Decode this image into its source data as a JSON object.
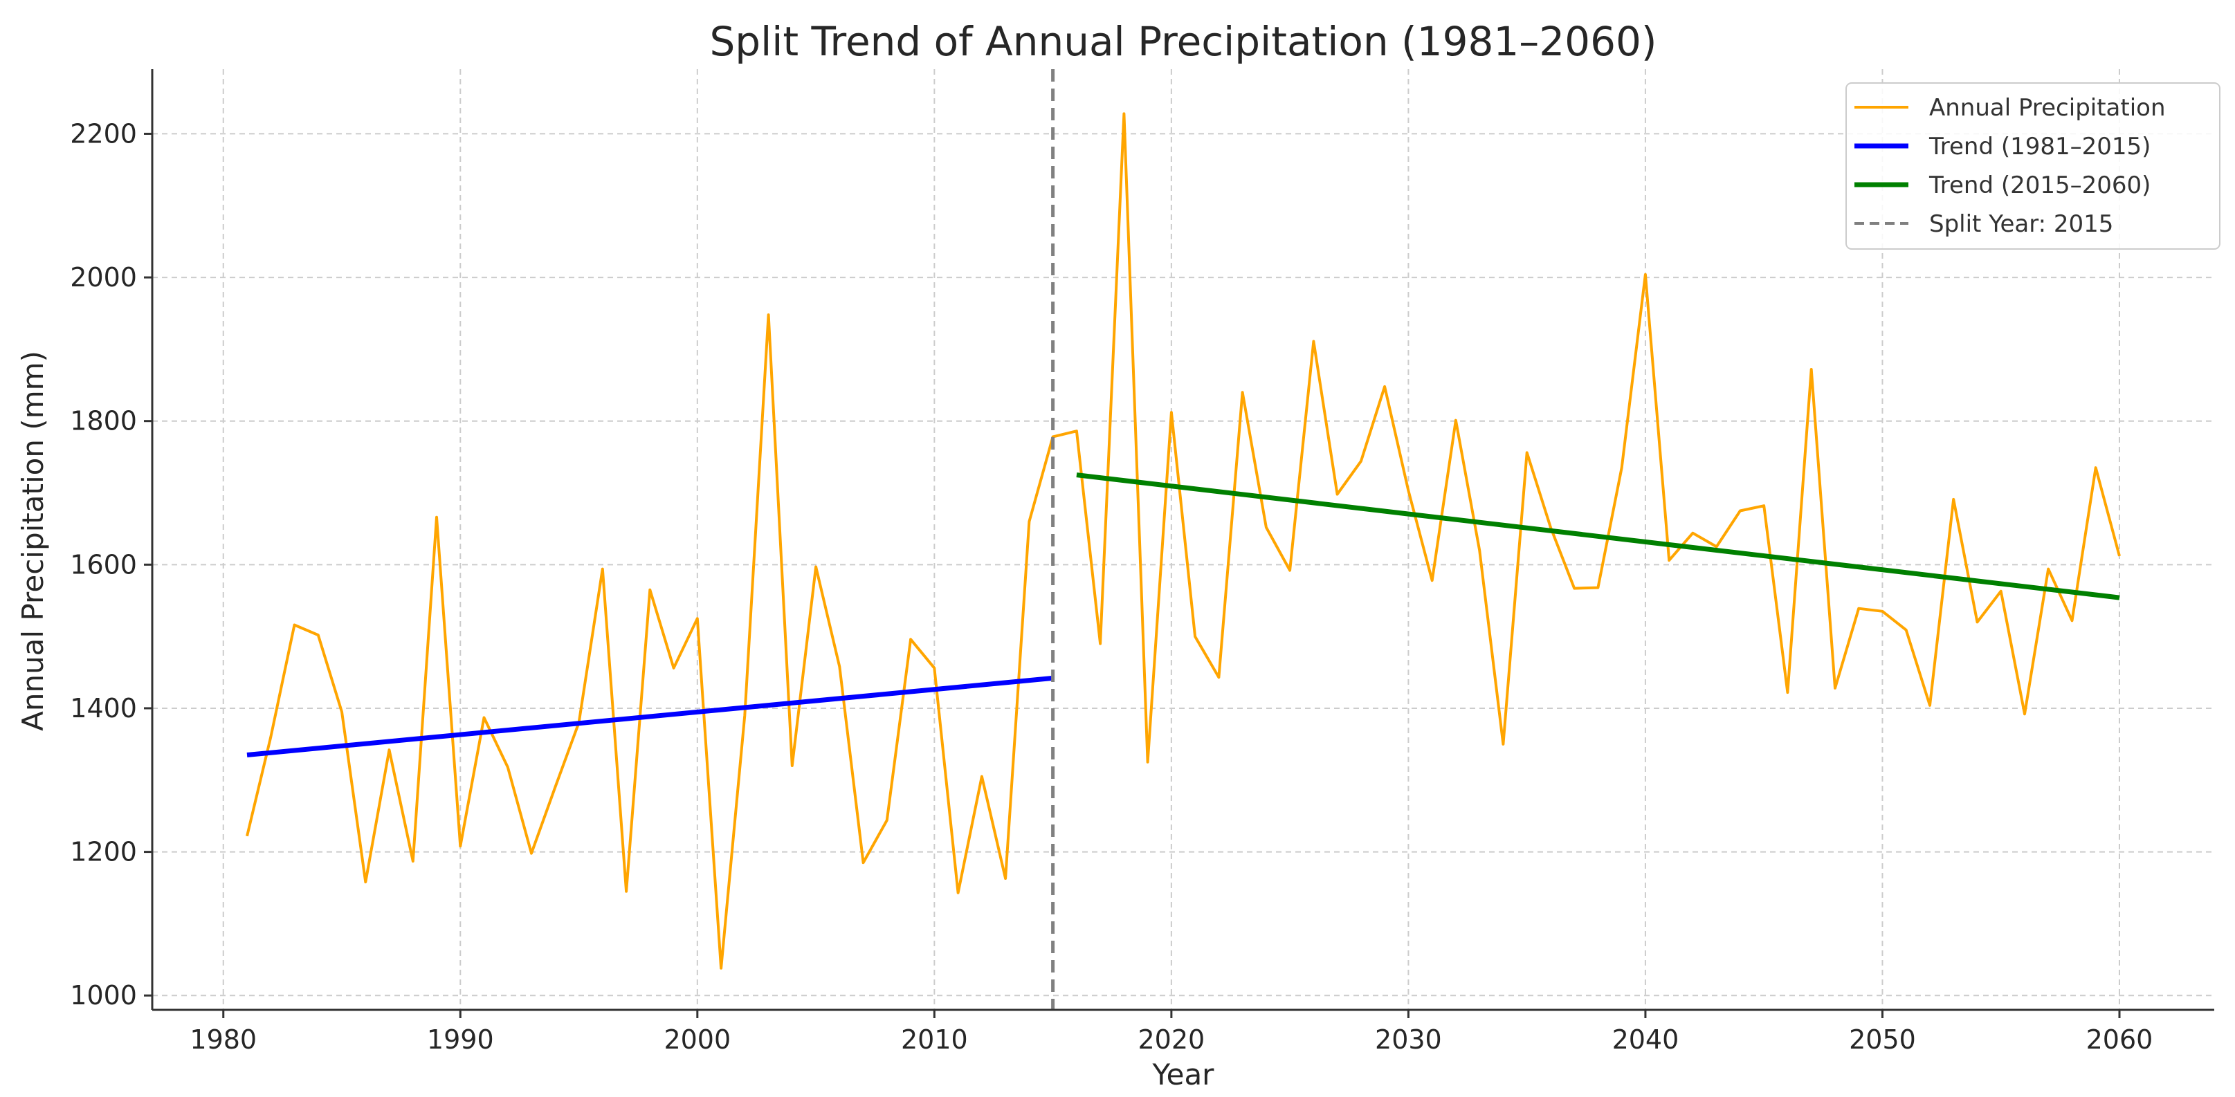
{
  "chart_data": {
    "type": "line",
    "title": "Split Trend of Annual Precipitation (1981–2060)",
    "xlabel": "Year",
    "ylabel": "Annual Precipitation (mm)",
    "xlim": [
      1977,
      2064
    ],
    "ylim": [
      980,
      2290
    ],
    "xticks": [
      1980,
      1990,
      2000,
      2010,
      2020,
      2030,
      2040,
      2050,
      2060
    ],
    "yticks": [
      1000,
      1200,
      1400,
      1600,
      1800,
      2000,
      2200
    ],
    "grid": true,
    "legend_position": "top-right",
    "colors": {
      "precip": "#FFA500",
      "trend1": "#0000FF",
      "trend2": "#008000",
      "split": "#808080"
    },
    "series": [
      {
        "name": "Annual Precipitation",
        "x": [
          1981,
          1982,
          1983,
          1984,
          1985,
          1986,
          1987,
          1988,
          1989,
          1990,
          1991,
          1992,
          1993,
          1994,
          1995,
          1996,
          1997,
          1998,
          1999,
          2000,
          2001,
          2002,
          2003,
          2004,
          2005,
          2006,
          2007,
          2008,
          2009,
          2010,
          2011,
          2012,
          2013,
          2014,
          2015,
          2016,
          2017,
          2018,
          2019,
          2020,
          2021,
          2022,
          2023,
          2024,
          2025,
          2026,
          2027,
          2028,
          2029,
          2030,
          2031,
          2032,
          2033,
          2034,
          2035,
          2036,
          2037,
          2038,
          2039,
          2040,
          2041,
          2042,
          2043,
          2044,
          2045,
          2046,
          2047,
          2048,
          2049,
          2050,
          2051,
          2052,
          2053,
          2054,
          2055,
          2056,
          2057,
          2058,
          2059,
          2060
        ],
        "values": [
          1222,
          1360,
          1516,
          1502,
          1395,
          1158,
          1342,
          1187,
          1666,
          1208,
          1387,
          1318,
          1198,
          1290,
          1380,
          1594,
          1145,
          1565,
          1456,
          1525,
          1038,
          1390,
          1948,
          1320,
          1597,
          1458,
          1185,
          1244,
          1496,
          1456,
          1143,
          1305,
          1163,
          1660,
          1778,
          1786,
          1490,
          2228,
          1325,
          1812,
          1500,
          1443,
          1840,
          1652,
          1592,
          1911,
          1698,
          1744,
          1848,
          1703,
          1578,
          1801,
          1620,
          1350,
          1756,
          1652,
          1567,
          1568,
          1735,
          2004,
          1606,
          1644,
          1625,
          1675,
          1682,
          1422,
          1872,
          1428,
          1539,
          1535,
          1509,
          1404,
          1691,
          1520,
          1563,
          1392,
          1594,
          1522,
          1735,
          1612
        ],
        "color": "#FFA500"
      },
      {
        "name": "Trend (1981–2015)",
        "x": [
          1981,
          2015
        ],
        "values": [
          1335,
          1442
        ],
        "color": "#0000FF"
      },
      {
        "name": "Trend (2015–2060)",
        "x": [
          2016,
          2060
        ],
        "values": [
          1725,
          1554
        ],
        "color": "#008000"
      }
    ],
    "annotations": [
      {
        "name": "Split Year: 2015",
        "type": "vline",
        "x": 2015,
        "color": "#808080"
      }
    ],
    "legend": [
      {
        "label": "Annual Precipitation",
        "style": "solid",
        "color": "#FFA500"
      },
      {
        "label": "Trend (1981–2015)",
        "style": "solid",
        "color": "#0000FF"
      },
      {
        "label": "Trend (2015–2060)",
        "style": "solid",
        "color": "#008000"
      },
      {
        "label": "Split Year: 2015",
        "style": "dashed",
        "color": "#808080"
      }
    ]
  }
}
